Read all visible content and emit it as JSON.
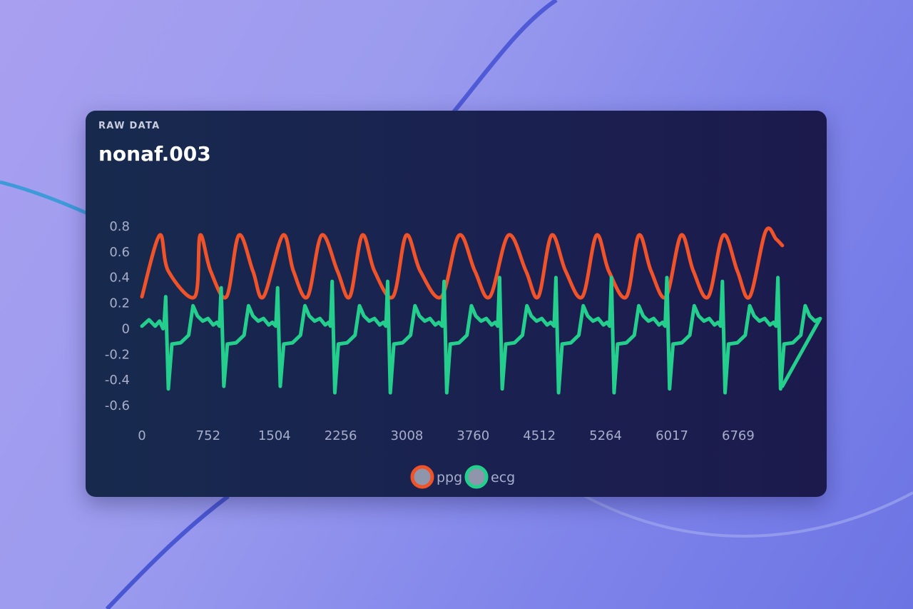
{
  "header": {
    "kicker": "RAW DATA",
    "title": "nonaf.003"
  },
  "colors": {
    "ppg": "#f0522a",
    "ecg": "#24cf8d",
    "legend_fill": "#8f96ab"
  },
  "chart_data": {
    "type": "line",
    "title": "nonaf.003",
    "xlabel": "",
    "ylabel": "",
    "xlim": [
      0,
      7620
    ],
    "ylim": [
      -0.6,
      0.8
    ],
    "x_ticks": [
      "0",
      "752",
      "1504",
      "2256",
      "3008",
      "3760",
      "4512",
      "5264",
      "6017",
      "6769"
    ],
    "y_ticks": [
      "0.8",
      "0.6",
      "0.4",
      "0.2",
      "0",
      "-0.2",
      "-0.4",
      "-0.6"
    ],
    "grid": false,
    "legend_position": "bottom-center",
    "series": [
      {
        "name": "ppg",
        "color": "#f0522a",
        "x": [
          0,
          200,
          300,
          600,
          660,
          780,
          960,
          1100,
          1260,
          1380,
          1600,
          1720,
          1880,
          2040,
          2220,
          2360,
          2500,
          2640,
          2850,
          3000,
          3160,
          3400,
          3600,
          3780,
          3950,
          4160,
          4360,
          4500,
          4650,
          4810,
          5000,
          5160,
          5300,
          5500,
          5640,
          5780,
          5950,
          6120,
          6260,
          6430,
          6600,
          6760,
          6900,
          7080,
          7200,
          7270
        ],
        "y": [
          0.25,
          0.73,
          0.45,
          0.25,
          0.73,
          0.45,
          0.25,
          0.73,
          0.45,
          0.25,
          0.73,
          0.45,
          0.25,
          0.73,
          0.45,
          0.25,
          0.73,
          0.45,
          0.25,
          0.73,
          0.45,
          0.25,
          0.73,
          0.45,
          0.25,
          0.73,
          0.45,
          0.25,
          0.73,
          0.45,
          0.25,
          0.73,
          0.45,
          0.25,
          0.73,
          0.45,
          0.25,
          0.73,
          0.45,
          0.25,
          0.73,
          0.45,
          0.25,
          0.76,
          0.7,
          0.65
        ]
      },
      {
        "name": "ecg",
        "color": "#24cf8d",
        "beat_times": [
          270,
          900,
          1540,
          2160,
          2790,
          3430,
          4060,
          4700,
          5330,
          5960,
          6590,
          7220
        ],
        "beat_peak": [
          0.25,
          0.32,
          0.32,
          0.37,
          0.37,
          0.37,
          0.4,
          0.4,
          0.4,
          0.4,
          0.37,
          0.4
        ],
        "beat_trough": [
          -0.47,
          -0.45,
          -0.45,
          -0.5,
          -0.5,
          -0.5,
          -0.47,
          -0.5,
          -0.5,
          -0.47,
          -0.5,
          -0.47
        ],
        "t_wave_peak": 0.18,
        "baseline": 0.02
      }
    ]
  },
  "legend": {
    "items": [
      {
        "label": "ppg",
        "color": "#f0522a"
      },
      {
        "label": "ecg",
        "color": "#24cf8d"
      }
    ]
  }
}
